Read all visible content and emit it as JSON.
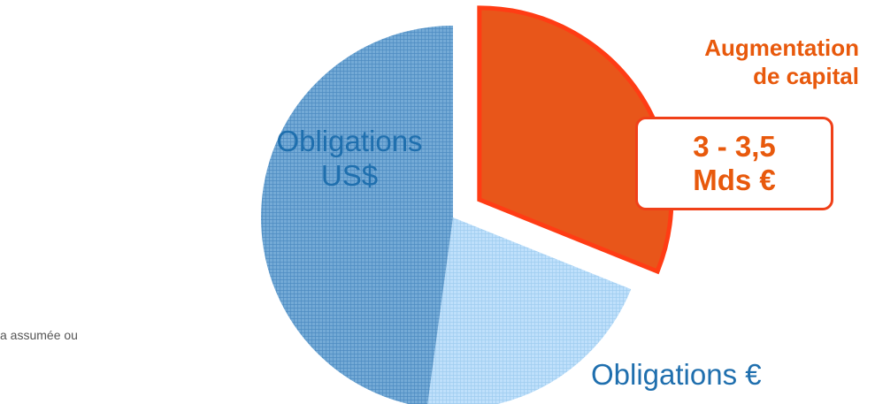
{
  "chart_data": {
    "type": "pie",
    "title": "",
    "slices": [
      {
        "label_lines": [
          "Augmentation",
          "de capital"
        ],
        "value": 3.25,
        "color": "#e8561a",
        "stroke": "#ff3c14",
        "exploded": true,
        "pattern": "none"
      },
      {
        "label_lines": [
          "Obligations €"
        ],
        "value": 2.2,
        "color": "#bfe0fb",
        "stroke": "none",
        "exploded": false,
        "pattern": "grid"
      },
      {
        "label_lines": [
          "Obligations",
          "US$"
        ],
        "value": 5.0,
        "color": "#74aad6",
        "stroke": "none",
        "exploded": false,
        "pattern": "grid"
      }
    ],
    "callout": {
      "lines": [
        "3 - 3,5",
        "Mds €"
      ]
    }
  },
  "footnote": "a assumée ou",
  "colors": {
    "label_blue": "#1f6fae",
    "accent_orange": "#e8590c",
    "callout_border": "#f04018"
  }
}
